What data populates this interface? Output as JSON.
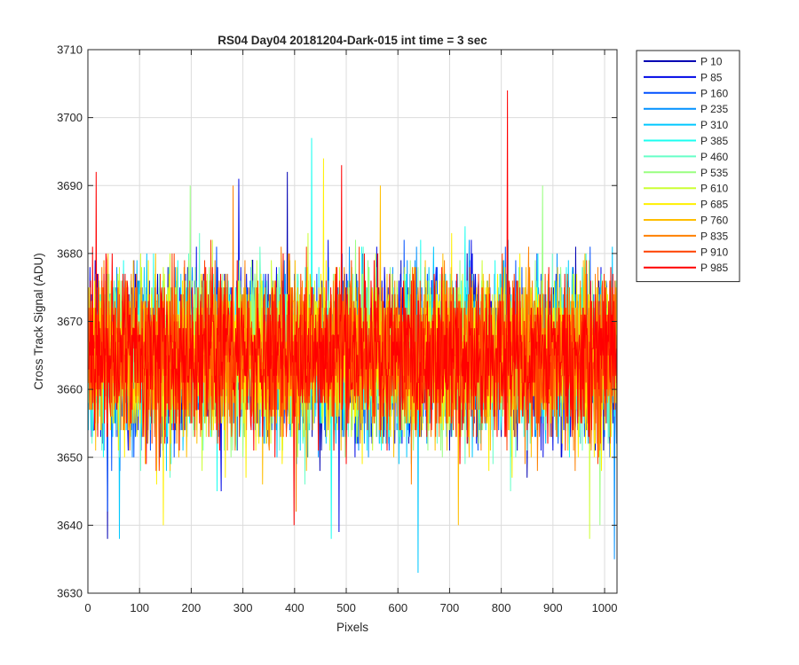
{
  "chart_data": {
    "type": "line",
    "title": "RS04 Day04 20181204-Dark-015 int time = 3 sec",
    "xlabel": "Pixels",
    "ylabel": "Cross Track Signal (ADU)",
    "xlim": [
      0,
      1024
    ],
    "ylim": [
      3630,
      3710
    ],
    "xticks": [
      0,
      100,
      200,
      300,
      400,
      500,
      600,
      700,
      800,
      900,
      1000
    ],
    "yticks": [
      3630,
      3640,
      3650,
      3660,
      3670,
      3680,
      3690,
      3700,
      3710
    ],
    "grid": true,
    "legend_location": "outside-right-top",
    "n_points_per_series": 1024,
    "series": [
      {
        "name": "P 10",
        "color": "#0000B3",
        "mean": 3665,
        "min": 3638,
        "max": 3692,
        "peaks": [
          [
            37,
            3638
          ],
          [
            385,
            3692
          ]
        ]
      },
      {
        "name": "P 85",
        "color": "#0008E6",
        "mean": 3665,
        "min": 3639,
        "max": 3691,
        "peaks": [
          [
            291,
            3691
          ],
          [
            485,
            3639
          ]
        ]
      },
      {
        "name": "P 160",
        "color": "#0050FF",
        "mean": 3665,
        "min": 3642,
        "max": 3688,
        "peaks": [
          [
            37,
            3642
          ]
        ]
      },
      {
        "name": "P 235",
        "color": "#0090FF",
        "mean": 3665,
        "min": 3635,
        "max": 3687,
        "peaks": [
          [
            1018,
            3635
          ]
        ]
      },
      {
        "name": "P 310",
        "color": "#00C8FF",
        "mean": 3665,
        "min": 3633,
        "max": 3688,
        "peaks": [
          [
            638,
            3633
          ],
          [
            60,
            3638
          ]
        ]
      },
      {
        "name": "P 385",
        "color": "#1AFFF0",
        "mean": 3665,
        "min": 3638,
        "max": 3697,
        "peaks": [
          [
            432,
            3697
          ],
          [
            470,
            3638
          ]
        ]
      },
      {
        "name": "P 460",
        "color": "#66FFC8",
        "mean": 3665,
        "min": 3640,
        "max": 3689,
        "peaks": []
      },
      {
        "name": "P 535",
        "color": "#99FF80",
        "mean": 3665,
        "min": 3640,
        "max": 3690,
        "peaks": [
          [
            197,
            3690
          ],
          [
            879,
            3690
          ],
          [
            990,
            3640
          ]
        ]
      },
      {
        "name": "P 610",
        "color": "#CCFF33",
        "mean": 3665,
        "min": 3638,
        "max": 3690,
        "peaks": [
          [
            970,
            3638
          ]
        ]
      },
      {
        "name": "P 685",
        "color": "#FFF000",
        "mean": 3665,
        "min": 3640,
        "max": 3694,
        "peaks": [
          [
            455,
            3694
          ],
          [
            145,
            3640
          ]
        ]
      },
      {
        "name": "P 760",
        "color": "#FFBE00",
        "mean": 3665,
        "min": 3640,
        "max": 3690,
        "peaks": [
          [
            565,
            3690
          ],
          [
            716,
            3640
          ]
        ]
      },
      {
        "name": "P 835",
        "color": "#FF8000",
        "mean": 3665,
        "min": 3642,
        "max": 3690,
        "peaks": [
          [
            280,
            3690
          ],
          [
            402,
            3642
          ]
        ]
      },
      {
        "name": "P 910",
        "color": "#FF4000",
        "mean": 3665,
        "min": 3643,
        "max": 3689,
        "peaks": []
      },
      {
        "name": "P 985",
        "color": "#FF0000",
        "mean": 3665,
        "min": 3640,
        "max": 3704,
        "peaks": [
          [
            811,
            3704
          ],
          [
            15,
            3692
          ],
          [
            490,
            3693
          ],
          [
            398,
            3640
          ]
        ]
      }
    ]
  }
}
